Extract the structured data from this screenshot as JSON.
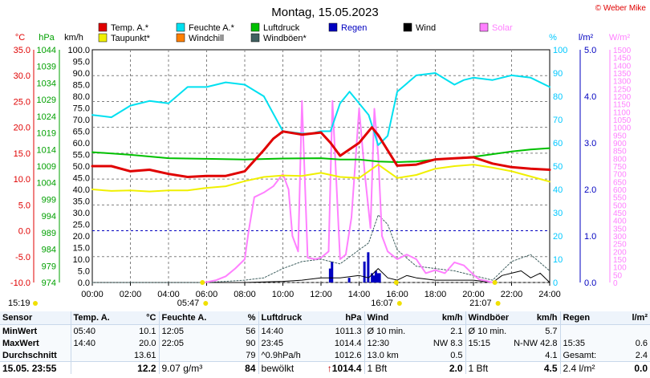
{
  "copyright": "© Weber Mike",
  "chart_data": {
    "type": "line",
    "title": "Montag, 15.05.2023",
    "xlabel": "",
    "x_ticks": [
      "00:00",
      "02:00",
      "04:00",
      "06:00",
      "08:00",
      "10:00",
      "12:00",
      "14:00",
      "16:00",
      "18:00",
      "20:00",
      "22:00",
      "24:00"
    ],
    "axes": {
      "temp": {
        "unit": "°C",
        "color": "#e00000",
        "min": -10,
        "max": 35,
        "ticks": [
          "35.0",
          "30.0",
          "25.0",
          "20.0",
          "15.0",
          "10.0",
          "5.0",
          "0.0",
          "-5.0",
          "-10.0"
        ]
      },
      "hpa": {
        "unit": "hPa",
        "color": "#00a000",
        "min": 974,
        "max": 1044,
        "ticks": [
          "1044",
          "1039",
          "1034",
          "1029",
          "1024",
          "1019",
          "1014",
          "1009",
          "1004",
          "999",
          "994",
          "989",
          "984",
          "979",
          "974"
        ]
      },
      "kmh": {
        "unit": "km/h",
        "color": "#000000",
        "min": 0,
        "max": 100,
        "ticks": [
          "100.0",
          "95.0",
          "90.0",
          "85.0",
          "80.0",
          "75.0",
          "70.0",
          "65.0",
          "60.0",
          "55.0",
          "50.0",
          "45.0",
          "40.0",
          "35.0",
          "30.0",
          "25.0",
          "20.0",
          "15.0",
          "10.0",
          "5.0",
          "0.0"
        ]
      },
      "pct": {
        "unit": "%",
        "color": "#00c8ff",
        "min": 0,
        "max": 100,
        "ticks": [
          "100",
          "90",
          "80",
          "70",
          "60",
          "50",
          "40",
          "30",
          "20",
          "10",
          "0"
        ]
      },
      "rain": {
        "unit": "l/m²",
        "color": "#0000c0",
        "min": 0,
        "max": 5,
        "ticks": [
          "5.0",
          "4.0",
          "3.0",
          "2.0",
          "1.0",
          "0.0"
        ]
      },
      "solar": {
        "unit": "W/m²",
        "color": "#ff80ff",
        "min": 0,
        "max": 1500,
        "ticks": [
          "1500",
          "1450",
          "1400",
          "1350",
          "1300",
          "1250",
          "1200",
          "1150",
          "1100",
          "1050",
          "1000",
          "950",
          "900",
          "850",
          "800",
          "750",
          "700",
          "650",
          "600",
          "550",
          "500",
          "450",
          "400",
          "350",
          "300",
          "250",
          "200",
          "150",
          "100",
          "50",
          "0"
        ]
      }
    },
    "legend": [
      {
        "name": "Temp. A.*",
        "color": "#e00000"
      },
      {
        "name": "Feuchte A.*",
        "color": "#00e0f0"
      },
      {
        "name": "Luftdruck",
        "color": "#00c000"
      },
      {
        "name": "Regen",
        "color": "#0000c0"
      },
      {
        "name": "Wind",
        "color": "#000000"
      },
      {
        "name": "Solar",
        "color": "#ff80ff"
      },
      {
        "name": "Taupunkt*",
        "color": "#f0f000"
      },
      {
        "name": "Windchill",
        "color": "#ff8000"
      },
      {
        "name": "Windböen*",
        "color": "#406060"
      }
    ],
    "series": [
      {
        "name": "Temp. A.*",
        "axis": "temp",
        "color": "#e00000",
        "width": 3,
        "x": [
          0,
          1,
          2,
          3,
          4,
          5,
          6,
          7,
          8,
          9,
          9.5,
          10,
          11,
          12,
          12.5,
          13,
          14,
          14.67,
          15,
          16,
          17,
          18,
          19,
          20,
          21,
          22,
          23,
          24
        ],
        "y": [
          12.5,
          12.5,
          11.5,
          11.8,
          11,
          10.4,
          10.6,
          10.6,
          11.5,
          15.6,
          17.8,
          19.2,
          18.6,
          19,
          17,
          14.5,
          17,
          20,
          18.5,
          12.6,
          12.8,
          13.8,
          14,
          14.2,
          13,
          12.3,
          12,
          11.8
        ]
      },
      {
        "name": "Taupunkt*",
        "axis": "temp",
        "color": "#f0f000",
        "width": 2,
        "x": [
          0,
          1,
          2,
          3,
          4,
          5,
          6,
          7,
          8,
          9,
          10,
          11,
          12,
          13,
          14,
          15,
          16,
          17,
          18,
          19,
          20,
          21,
          22,
          23,
          24
        ],
        "y": [
          8,
          7.7,
          7.8,
          7.6,
          7.8,
          7.8,
          8.3,
          8.6,
          9.6,
          10.4,
          10.7,
          10.6,
          11.2,
          10.4,
          10.2,
          12.8,
          10.2,
          10.8,
          12,
          12.5,
          12.8,
          12.2,
          11.5,
          10.5,
          9.5
        ]
      },
      {
        "name": "Feuchte A.*",
        "axis": "pct",
        "color": "#00e0f0",
        "width": 2,
        "x": [
          0,
          1,
          2,
          3,
          4,
          5,
          6,
          7,
          8,
          9,
          10,
          11,
          11.5,
          12,
          12.5,
          13,
          13.5,
          14,
          14.5,
          15,
          15.5,
          16,
          17,
          18,
          19,
          19.5,
          20,
          21,
          22,
          23,
          24
        ],
        "y": [
          72,
          71,
          76,
          78,
          77,
          84,
          84,
          86,
          85,
          80,
          65,
          64,
          64,
          65,
          65,
          77,
          82,
          77,
          72,
          59,
          63,
          82,
          89,
          90,
          85,
          87,
          88,
          87,
          89,
          88,
          84
        ]
      },
      {
        "name": "Luftdruck",
        "axis": "hpa",
        "color": "#00c000",
        "width": 2,
        "x": [
          0,
          2,
          4,
          6,
          8,
          10,
          12,
          13,
          14,
          15,
          16,
          17,
          18,
          19,
          20,
          21,
          22,
          23,
          24
        ],
        "y": [
          1013.2,
          1012.4,
          1011.4,
          1011.2,
          1011,
          1011.3,
          1011.4,
          1011,
          1011,
          1010.4,
          1010.2,
          1010.4,
          1011,
          1011.4,
          1011.8,
          1012.6,
          1013.4,
          1014,
          1014.4
        ]
      },
      {
        "name": "Solar",
        "axis": "solar",
        "color": "#ff80ff",
        "width": 2,
        "x": [
          5.9,
          6.5,
          7,
          7.5,
          8,
          8.2,
          8.5,
          9,
          9.5,
          10,
          10.3,
          10.5,
          10.8,
          11,
          11.3,
          11.7,
          12,
          12.4,
          12.6,
          13,
          13.3,
          13.6,
          14,
          14.3,
          14.6,
          14.8,
          15,
          15.2,
          15.5,
          16,
          16.5,
          17,
          17.5,
          18,
          18.5,
          19,
          19.5,
          20,
          20.3,
          20.7,
          21
        ],
        "y": [
          0,
          15,
          40,
          90,
          150,
          330,
          550,
          580,
          620,
          700,
          600,
          300,
          200,
          1170,
          160,
          150,
          160,
          200,
          1170,
          150,
          180,
          420,
          1120,
          700,
          350,
          1120,
          820,
          300,
          200,
          150,
          180,
          150,
          60,
          80,
          60,
          130,
          110,
          50,
          20,
          10,
          0
        ]
      },
      {
        "name": "Windböen*",
        "axis": "kmh",
        "color": "#406060",
        "width": 1,
        "dash": "2,2",
        "x": [
          0,
          4,
          6,
          8,
          9,
          10,
          11,
          12,
          13,
          14,
          14.5,
          15,
          15.5,
          16,
          17,
          18,
          19,
          20,
          21,
          22,
          23,
          24
        ],
        "y": [
          0,
          0,
          0,
          1,
          2,
          6,
          9,
          10,
          8,
          14,
          17,
          29,
          25,
          14,
          7,
          6,
          5,
          3,
          1,
          9,
          12,
          5
        ]
      },
      {
        "name": "Wind",
        "axis": "kmh",
        "color": "#000000",
        "width": 1,
        "x": [
          0,
          8,
          10,
          11,
          12,
          13,
          14,
          14.5,
          15,
          15.5,
          16,
          16.5,
          17,
          18,
          19,
          20,
          21,
          21.5,
          22,
          22.5,
          23,
          23.5,
          24
        ],
        "y": [
          0,
          0,
          0.5,
          1,
          2,
          2,
          3,
          2,
          6,
          2,
          1,
          3,
          2,
          1,
          1,
          1,
          0,
          3,
          4,
          5,
          2,
          4,
          0
        ]
      },
      {
        "name": "Regen",
        "axis": "rain",
        "color": "#0000c0",
        "type": "bar",
        "x": [
          12.5,
          12.6,
          13.5,
          14.3,
          14.5,
          14.7,
          14.8,
          14.9,
          15.0,
          15.1
        ],
        "y": [
          0.3,
          0.45,
          0.1,
          0.45,
          0.65,
          0.2,
          0.15,
          0.25,
          0.2,
          0.2
        ]
      }
    ],
    "references": [
      {
        "axis": "temp",
        "value": 0,
        "color": "#0000c0",
        "dash": "3,3"
      }
    ],
    "sun_markers": [
      {
        "label": "05:47",
        "x": 5.78
      },
      {
        "label": "16:07",
        "x": 15.95
      },
      {
        "label": "21:07",
        "x": 21.12
      }
    ],
    "update_time": "15:19"
  },
  "stats": {
    "headers": [
      "Sensor",
      "Temp. A.",
      "°C",
      "Feuchte A.",
      "%",
      "Luftdruck",
      "hPa",
      "Wind",
      "km/h",
      "Windböen",
      "km/h",
      "Regen",
      "l/m²"
    ],
    "rows": [
      [
        "MinWert",
        "05:40",
        "10.1",
        "12:05",
        "56",
        "14:40",
        "1011.3",
        "Ø 10 min.",
        "2.1",
        "Ø 10 min.",
        "5.7",
        "",
        ""
      ],
      [
        "MaxWert",
        "14:40",
        "20.0",
        "22:05",
        "90",
        "23:45",
        "1014.4",
        "12:30",
        "NW 8.3",
        "15:15",
        "N-NW 42.8",
        "15:35",
        "0.6"
      ],
      [
        "Durchschnitt",
        "",
        "13.61",
        "",
        "79",
        "^0.9hPa/h",
        "1012.6",
        "13.0 km",
        "0.5",
        "",
        "4.1",
        "Gesamt:",
        "2.4"
      ]
    ],
    "current": [
      "15.05. 23:55",
      "",
      "12.2",
      "9.07 g/m³",
      "84",
      "bewölkt",
      "1014.4",
      "1 Bft",
      "2.0",
      "1 Bft",
      "4.5",
      "2.4 l/m²",
      "0.0"
    ],
    "trend_arrow": "↑"
  }
}
